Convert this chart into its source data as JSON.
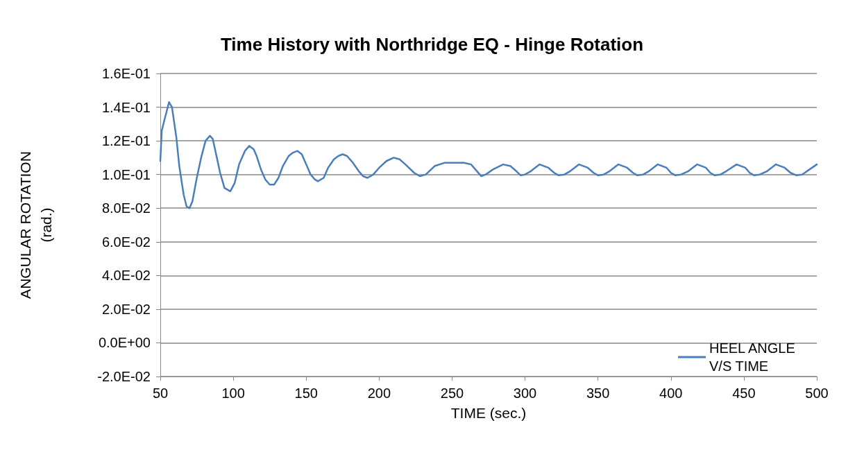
{
  "chart_data": {
    "type": "line",
    "title": "Time History with Northridge EQ - Hinge Rotation",
    "xlabel": "TIME (sec.)",
    "ylabel": "ANGULAR ROTATION\n(rad.)",
    "x": [
      50,
      51,
      53,
      56,
      58,
      61,
      63,
      66,
      68,
      70,
      72,
      75,
      78,
      81,
      84,
      86,
      88,
      91,
      94,
      98,
      101,
      104,
      108,
      111,
      114,
      116,
      119,
      122,
      125,
      128,
      131,
      134,
      138,
      141,
      144,
      147,
      150,
      153,
      156,
      158,
      162,
      165,
      169,
      172,
      175,
      178,
      182,
      186,
      189,
      192,
      196,
      200,
      205,
      210,
      214,
      218,
      224,
      228,
      232,
      238,
      245,
      252,
      258,
      263,
      267,
      270,
      273,
      278,
      285,
      290,
      294,
      297,
      300,
      304,
      310,
      316,
      320,
      323,
      327,
      331,
      337,
      343,
      347,
      350,
      354,
      358,
      364,
      370,
      374,
      377,
      381,
      385,
      391,
      397,
      400,
      403,
      407,
      412,
      418,
      424,
      427,
      430,
      434,
      438,
      445,
      451,
      454,
      457,
      461,
      466,
      472,
      478,
      482,
      486,
      490,
      495,
      500
    ],
    "series": [
      {
        "name": "HEEL ANGLE V/S TIME",
        "color": "#4a7ebb",
        "values": [
          0.108,
          0.126,
          0.133,
          0.143,
          0.14,
          0.122,
          0.105,
          0.088,
          0.081,
          0.08,
          0.084,
          0.098,
          0.11,
          0.12,
          0.123,
          0.121,
          0.113,
          0.101,
          0.092,
          0.09,
          0.095,
          0.106,
          0.114,
          0.117,
          0.115,
          0.111,
          0.103,
          0.097,
          0.094,
          0.094,
          0.098,
          0.105,
          0.111,
          0.113,
          0.114,
          0.112,
          0.106,
          0.1,
          0.097,
          0.096,
          0.098,
          0.104,
          0.109,
          0.111,
          0.112,
          0.111,
          0.107,
          0.102,
          0.099,
          0.098,
          0.1,
          0.104,
          0.108,
          0.11,
          0.109,
          0.106,
          0.101,
          0.099,
          0.1,
          0.105,
          0.107,
          0.107,
          0.107,
          0.106,
          0.102,
          0.099,
          0.1,
          0.103,
          0.106,
          0.105,
          0.102,
          0.0995,
          0.1,
          0.102,
          0.106,
          0.104,
          0.101,
          0.0995,
          0.1,
          0.102,
          0.106,
          0.104,
          0.101,
          0.0995,
          0.1,
          0.102,
          0.106,
          0.104,
          0.101,
          0.0995,
          0.1,
          0.102,
          0.106,
          0.104,
          0.101,
          0.0995,
          0.1,
          0.102,
          0.106,
          0.104,
          0.101,
          0.0995,
          0.1,
          0.102,
          0.106,
          0.104,
          0.101,
          0.0995,
          0.1,
          0.102,
          0.106,
          0.104,
          0.101,
          0.0995,
          0.1,
          0.103,
          0.106
        ]
      }
    ],
    "xlim": [
      50,
      500
    ],
    "xticks": [
      50,
      100,
      150,
      200,
      250,
      300,
      350,
      400,
      450,
      500
    ],
    "ylim": [
      -0.02,
      0.16
    ],
    "yticks": [
      {
        "value": -0.02,
        "label": "-2.0E-02"
      },
      {
        "value": 0,
        "label": "0.0E+00"
      },
      {
        "value": 0.02,
        "label": "2.0E-02"
      },
      {
        "value": 0.04,
        "label": "4.0E-02"
      },
      {
        "value": 0.06,
        "label": "6.0E-02"
      },
      {
        "value": 0.08,
        "label": "8.0E-02"
      },
      {
        "value": 0.1,
        "label": "1.0E-01"
      },
      {
        "value": 0.12,
        "label": "1.2E-01"
      },
      {
        "value": 0.14,
        "label": "1.4E-01"
      },
      {
        "value": 0.16,
        "label": "1.6E-01"
      }
    ],
    "grid": "y",
    "legend": "bottom right",
    "marker": "none",
    "line_style": "solid"
  }
}
